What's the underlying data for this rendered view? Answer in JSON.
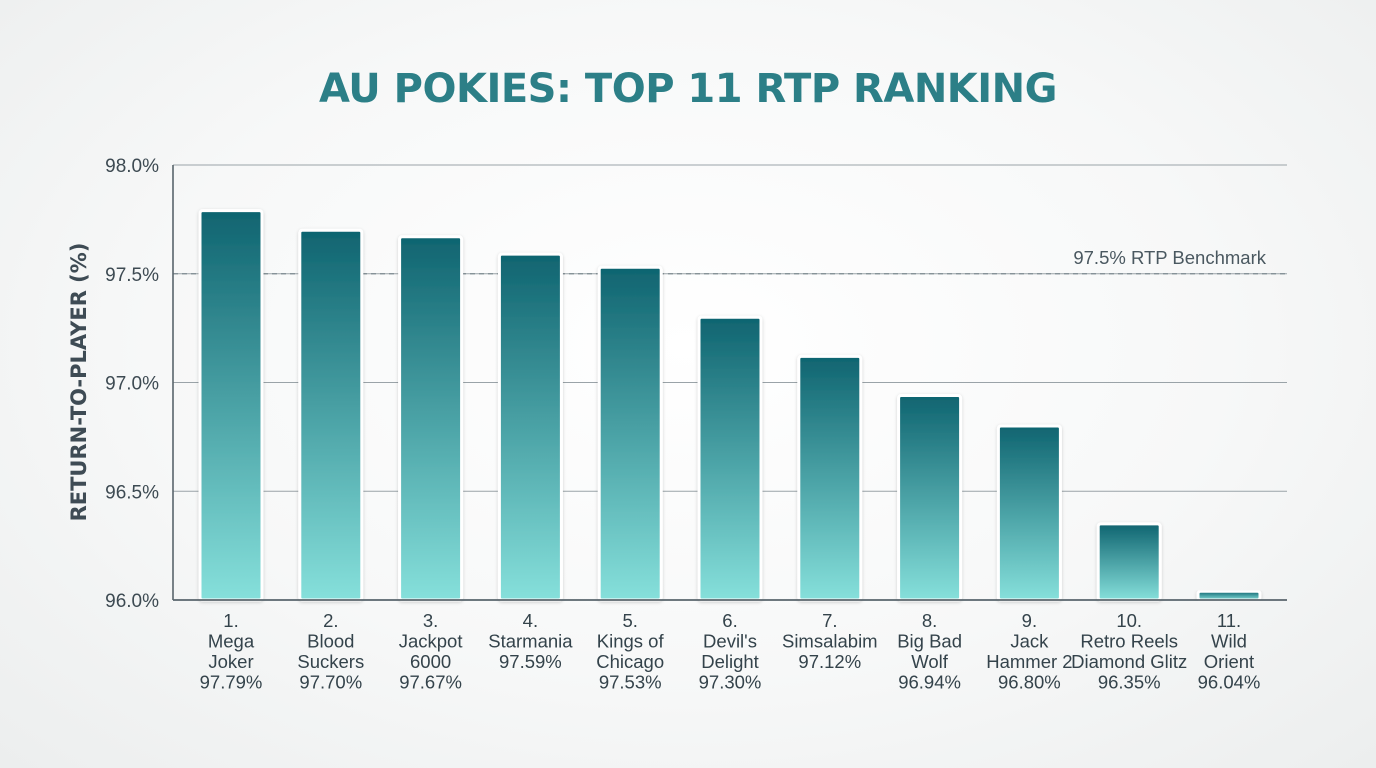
{
  "chart_data": {
    "type": "bar",
    "title": "AU POKIES: TOP 11 RTP RANKING",
    "ylabel": "RETURN-TO-PLAYER (%)",
    "xlabel": "",
    "ylim": [
      96.0,
      98.0
    ],
    "yticks": [
      96.0,
      96.5,
      97.0,
      97.5,
      98.0
    ],
    "ytick_labels": [
      "96.0%",
      "96.5%",
      "97.0%",
      "97.5%",
      "98.0%"
    ],
    "grid": true,
    "categories": [
      {
        "rank": "1.",
        "name": [
          "Mega",
          "Joker"
        ],
        "value_label": "97.79%"
      },
      {
        "rank": "2.",
        "name": [
          "Blood",
          "Suckers"
        ],
        "value_label": "97.70%"
      },
      {
        "rank": "3.",
        "name": [
          "Jackpot",
          "6000"
        ],
        "value_label": "97.67%"
      },
      {
        "rank": "4.",
        "name": [
          "Starmania"
        ],
        "value_label": "97.59%"
      },
      {
        "rank": "5.",
        "name": [
          "Kings of",
          "Chicago"
        ],
        "value_label": "97.53%"
      },
      {
        "rank": "6.",
        "name": [
          "Devil's",
          "Delight"
        ],
        "value_label": "97.30%"
      },
      {
        "rank": "7.",
        "name": [
          "Simsalabim"
        ],
        "value_label": "97.12%"
      },
      {
        "rank": "8.",
        "name": [
          "Big Bad",
          "Wolf"
        ],
        "value_label": "96.94%"
      },
      {
        "rank": "9.",
        "name": [
          "Jack",
          "Hammer 2"
        ],
        "value_label": "96.80%"
      },
      {
        "rank": "10.",
        "name": [
          "Retro Reels",
          "Diamond Glitz"
        ],
        "value_label": "96.35%"
      },
      {
        "rank": "11.",
        "name": [
          "Wild",
          "Orient"
        ],
        "value_label": "96.04%"
      }
    ],
    "values": [
      97.79,
      97.7,
      97.67,
      97.59,
      97.53,
      97.3,
      97.12,
      96.94,
      96.8,
      96.35,
      96.04
    ],
    "benchmark": {
      "value": 97.5,
      "label": "97.5% RTP Benchmark"
    },
    "colors": {
      "bar_top": "#0f6470",
      "bar_bottom": "#86e0db",
      "title": "#2c7f87",
      "grid": "#9aa3a8",
      "benchmark": "#7d8a90"
    }
  }
}
